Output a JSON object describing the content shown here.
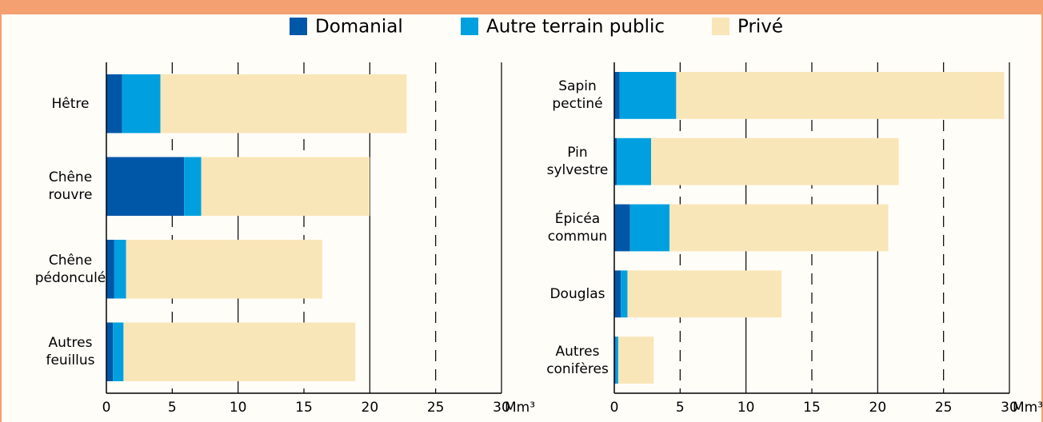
{
  "chart_data": [
    {
      "type": "bar",
      "orientation": "horizontal",
      "stacked": true,
      "categories": [
        "Hêtre",
        "Chêne rouvre",
        "Chêne pédonculé",
        "Autres feuillus"
      ],
      "series": [
        {
          "name": "Domanial",
          "color": "#0057a8",
          "values": [
            1.2,
            5.9,
            0.6,
            0.5
          ]
        },
        {
          "name": "Autre terrain public",
          "color": "#00a0e0",
          "values": [
            2.9,
            1.3,
            0.9,
            0.8
          ]
        },
        {
          "name": "Privé",
          "color": "#f9e6b8",
          "values": [
            18.7,
            12.8,
            14.9,
            17.6
          ]
        }
      ],
      "xlabel": "Mm³",
      "xlim": [
        0,
        30
      ],
      "xticks": [
        0,
        5,
        10,
        15,
        20,
        25,
        30
      ]
    },
    {
      "type": "bar",
      "orientation": "horizontal",
      "stacked": true,
      "categories": [
        "Sapin pectiné",
        "Pin sylvestre",
        "Épicéa commun",
        "Douglas",
        "Autres conifères"
      ],
      "series": [
        {
          "color": "#0057a8",
          "values": [
            0.4,
            0.2,
            1.2,
            0.5,
            0.1
          ]
        },
        {
          "color": "#00a0e0",
          "values": [
            4.3,
            2.6,
            3.0,
            0.5,
            0.2
          ]
        },
        {
          "color": "#f9e6b8",
          "values": [
            24.9,
            18.8,
            16.6,
            11.7,
            2.7
          ]
        }
      ],
      "xlabel": "Mm³",
      "xlim": [
        0,
        30
      ],
      "xticks": [
        0,
        5,
        10,
        15,
        20,
        25,
        30
      ]
    }
  ]
}
